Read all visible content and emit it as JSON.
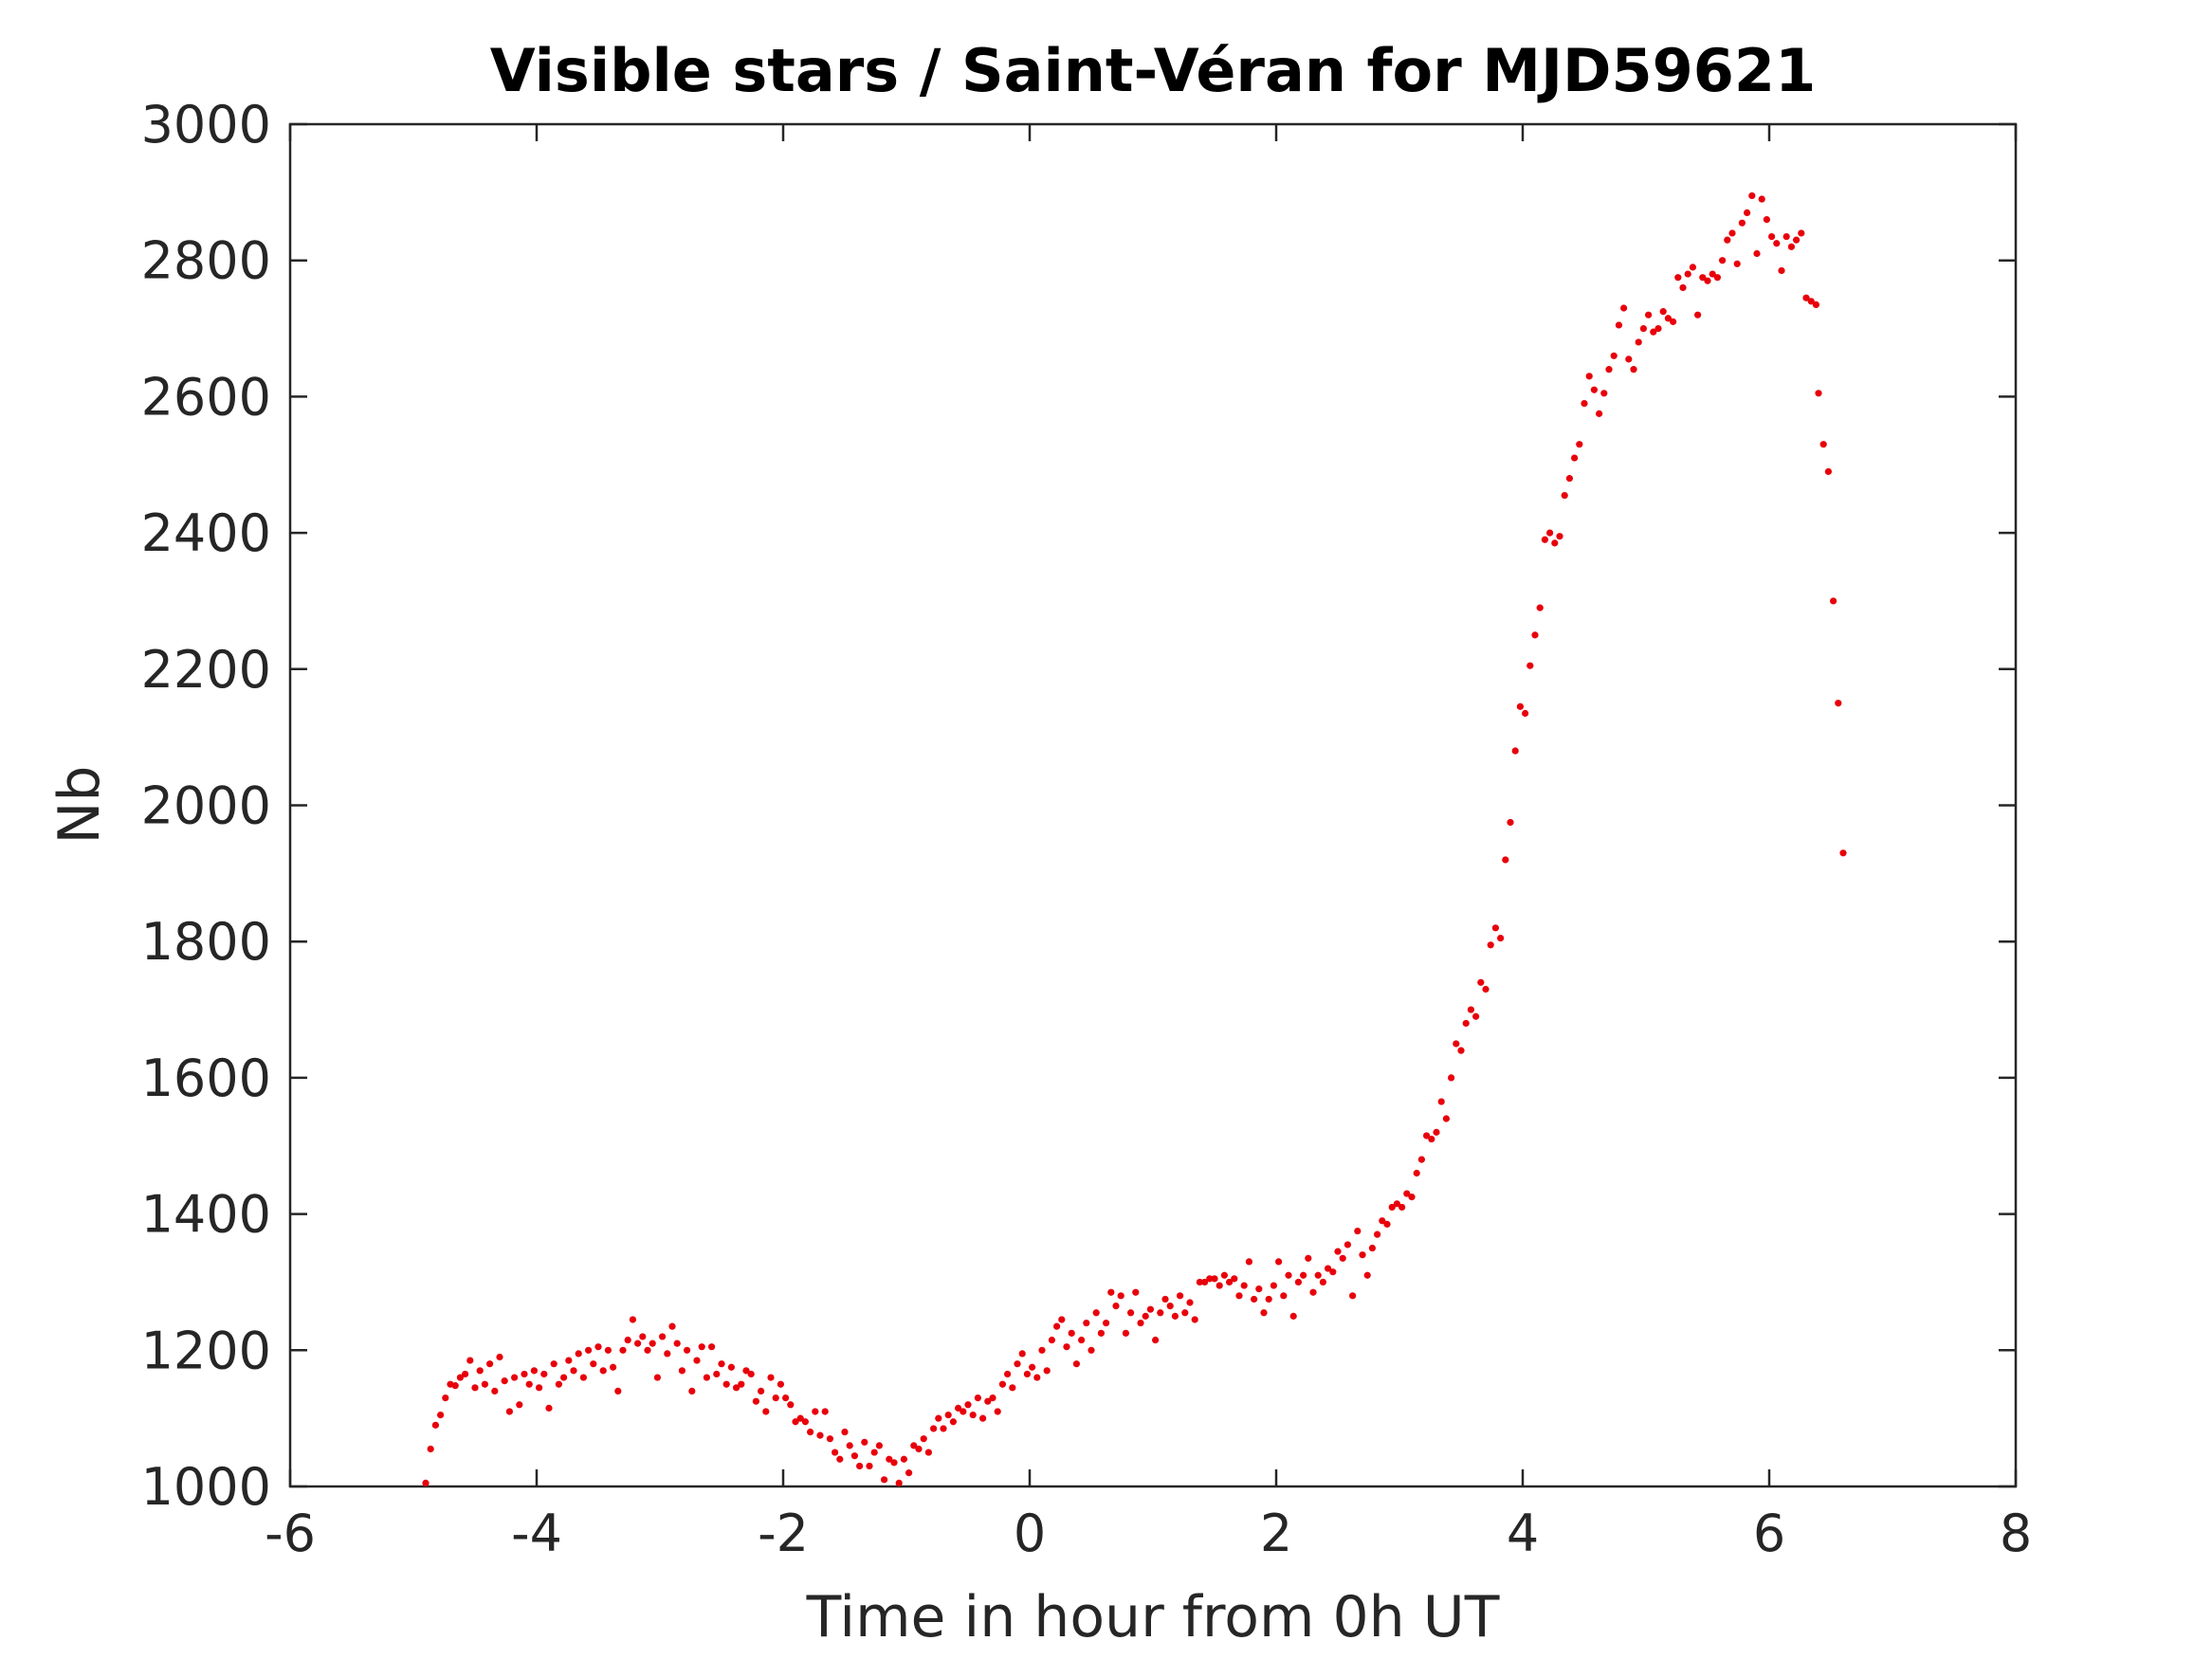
{
  "chart_data": {
    "type": "scatter",
    "title": "Visible stars / Saint-Véran for MJD59621",
    "xlabel": "Time in hour from 0h UT",
    "ylabel": "Nb",
    "xlim": [
      -6,
      8
    ],
    "ylim": [
      1000,
      3000
    ],
    "x_ticks": [
      -6,
      -4,
      -2,
      0,
      2,
      4,
      6,
      8
    ],
    "y_ticks": [
      1000,
      1200,
      1400,
      1600,
      1800,
      2000,
      2200,
      2400,
      2600,
      2800,
      3000
    ],
    "x_tick_labels": [
      "-6",
      "-4",
      "-2",
      "0",
      "2",
      "4",
      "6",
      "8"
    ],
    "y_tick_labels": [
      "1000",
      "1200",
      "1400",
      "1600",
      "1800",
      "2000",
      "2200",
      "2400",
      "2600",
      "2800",
      "3000"
    ],
    "grid": false,
    "box": true,
    "marker_color": "#e8000b",
    "series": [
      {
        "marker": "dot",
        "color": "#e8000b",
        "points": [
          [
            -4.9,
            1005
          ],
          [
            -4.86,
            1055
          ],
          [
            -4.82,
            1090
          ],
          [
            -4.78,
            1105
          ],
          [
            -4.74,
            1130
          ],
          [
            -4.7,
            1150
          ],
          [
            -4.66,
            1148
          ],
          [
            -4.62,
            1160
          ],
          [
            -4.58,
            1165
          ],
          [
            -4.54,
            1185
          ],
          [
            -4.5,
            1145
          ],
          [
            -4.46,
            1170
          ],
          [
            -4.42,
            1150
          ],
          [
            -4.38,
            1180
          ],
          [
            -4.34,
            1140
          ],
          [
            -4.3,
            1190
          ],
          [
            -4.26,
            1155
          ],
          [
            -4.22,
            1110
          ],
          [
            -4.18,
            1160
          ],
          [
            -4.14,
            1120
          ],
          [
            -4.1,
            1165
          ],
          [
            -4.06,
            1150
          ],
          [
            -4.02,
            1170
          ],
          [
            -3.98,
            1145
          ],
          [
            -3.94,
            1165
          ],
          [
            -3.9,
            1115
          ],
          [
            -3.86,
            1180
          ],
          [
            -3.82,
            1150
          ],
          [
            -3.78,
            1160
          ],
          [
            -3.74,
            1185
          ],
          [
            -3.7,
            1170
          ],
          [
            -3.66,
            1195
          ],
          [
            -3.62,
            1160
          ],
          [
            -3.58,
            1200
          ],
          [
            -3.54,
            1180
          ],
          [
            -3.5,
            1205
          ],
          [
            -3.46,
            1170
          ],
          [
            -3.42,
            1200
          ],
          [
            -3.38,
            1175
          ],
          [
            -3.34,
            1140
          ],
          [
            -3.3,
            1200
          ],
          [
            -3.26,
            1215
          ],
          [
            -3.22,
            1245
          ],
          [
            -3.18,
            1210
          ],
          [
            -3.14,
            1220
          ],
          [
            -3.1,
            1200
          ],
          [
            -3.06,
            1210
          ],
          [
            -3.02,
            1160
          ],
          [
            -2.98,
            1220
          ],
          [
            -2.94,
            1195
          ],
          [
            -2.9,
            1235
          ],
          [
            -2.86,
            1210
          ],
          [
            -2.82,
            1170
          ],
          [
            -2.78,
            1200
          ],
          [
            -2.74,
            1140
          ],
          [
            -2.7,
            1185
          ],
          [
            -2.66,
            1205
          ],
          [
            -2.62,
            1160
          ],
          [
            -2.58,
            1205
          ],
          [
            -2.54,
            1165
          ],
          [
            -2.5,
            1180
          ],
          [
            -2.46,
            1150
          ],
          [
            -2.42,
            1175
          ],
          [
            -2.38,
            1145
          ],
          [
            -2.34,
            1150
          ],
          [
            -2.3,
            1170
          ],
          [
            -2.26,
            1165
          ],
          [
            -2.22,
            1125
          ],
          [
            -2.18,
            1140
          ],
          [
            -2.14,
            1110
          ],
          [
            -2.1,
            1160
          ],
          [
            -2.06,
            1130
          ],
          [
            -2.02,
            1150
          ],
          [
            -1.98,
            1130
          ],
          [
            -1.94,
            1120
          ],
          [
            -1.9,
            1095
          ],
          [
            -1.86,
            1100
          ],
          [
            -1.82,
            1095
          ],
          [
            -1.78,
            1080
          ],
          [
            -1.74,
            1110
          ],
          [
            -1.7,
            1075
          ],
          [
            -1.66,
            1110
          ],
          [
            -1.62,
            1070
          ],
          [
            -1.58,
            1050
          ],
          [
            -1.54,
            1040
          ],
          [
            -1.5,
            1080
          ],
          [
            -1.46,
            1060
          ],
          [
            -1.42,
            1045
          ],
          [
            -1.38,
            1030
          ],
          [
            -1.34,
            1065
          ],
          [
            -1.3,
            1030
          ],
          [
            -1.26,
            1050
          ],
          [
            -1.22,
            1060
          ],
          [
            -1.18,
            1010
          ],
          [
            -1.14,
            1040
          ],
          [
            -1.1,
            1035
          ],
          [
            -1.06,
            1005
          ],
          [
            -1.02,
            1040
          ],
          [
            -0.98,
            1020
          ],
          [
            -0.94,
            1060
          ],
          [
            -0.9,
            1055
          ],
          [
            -0.86,
            1070
          ],
          [
            -0.82,
            1050
          ],
          [
            -0.78,
            1085
          ],
          [
            -0.74,
            1100
          ],
          [
            -0.7,
            1085
          ],
          [
            -0.66,
            1105
          ],
          [
            -0.62,
            1095
          ],
          [
            -0.58,
            1115
          ],
          [
            -0.54,
            1110
          ],
          [
            -0.5,
            1120
          ],
          [
            -0.46,
            1105
          ],
          [
            -0.42,
            1130
          ],
          [
            -0.38,
            1100
          ],
          [
            -0.34,
            1125
          ],
          [
            -0.3,
            1130
          ],
          [
            -0.26,
            1110
          ],
          [
            -0.22,
            1150
          ],
          [
            -0.18,
            1165
          ],
          [
            -0.14,
            1145
          ],
          [
            -0.1,
            1180
          ],
          [
            -0.06,
            1195
          ],
          [
            -0.02,
            1165
          ],
          [
            0.02,
            1175
          ],
          [
            0.06,
            1160
          ],
          [
            0.1,
            1200
          ],
          [
            0.14,
            1170
          ],
          [
            0.18,
            1215
          ],
          [
            0.22,
            1235
          ],
          [
            0.26,
            1245
          ],
          [
            0.3,
            1205
          ],
          [
            0.34,
            1225
          ],
          [
            0.38,
            1180
          ],
          [
            0.42,
            1215
          ],
          [
            0.46,
            1240
          ],
          [
            0.5,
            1200
          ],
          [
            0.54,
            1255
          ],
          [
            0.58,
            1225
          ],
          [
            0.62,
            1240
          ],
          [
            0.66,
            1285
          ],
          [
            0.7,
            1265
          ],
          [
            0.74,
            1280
          ],
          [
            0.78,
            1225
          ],
          [
            0.82,
            1255
          ],
          [
            0.86,
            1285
          ],
          [
            0.9,
            1240
          ],
          [
            0.94,
            1250
          ],
          [
            0.98,
            1260
          ],
          [
            1.02,
            1215
          ],
          [
            1.06,
            1255
          ],
          [
            1.1,
            1275
          ],
          [
            1.14,
            1265
          ],
          [
            1.18,
            1250
          ],
          [
            1.22,
            1280
          ],
          [
            1.26,
            1255
          ],
          [
            1.3,
            1270
          ],
          [
            1.34,
            1245
          ],
          [
            1.38,
            1300
          ],
          [
            1.42,
            1300
          ],
          [
            1.46,
            1305
          ],
          [
            1.5,
            1305
          ],
          [
            1.54,
            1295
          ],
          [
            1.58,
            1310
          ],
          [
            1.62,
            1300
          ],
          [
            1.66,
            1305
          ],
          [
            1.7,
            1280
          ],
          [
            1.74,
            1295
          ],
          [
            1.78,
            1330
          ],
          [
            1.82,
            1275
          ],
          [
            1.86,
            1290
          ],
          [
            1.9,
            1255
          ],
          [
            1.94,
            1275
          ],
          [
            1.98,
            1295
          ],
          [
            2.02,
            1330
          ],
          [
            2.06,
            1280
          ],
          [
            2.1,
            1310
          ],
          [
            2.14,
            1250
          ],
          [
            2.18,
            1300
          ],
          [
            2.22,
            1310
          ],
          [
            2.26,
            1335
          ],
          [
            2.3,
            1285
          ],
          [
            2.34,
            1310
          ],
          [
            2.38,
            1300
          ],
          [
            2.42,
            1320
          ],
          [
            2.46,
            1315
          ],
          [
            2.5,
            1345
          ],
          [
            2.54,
            1335
          ],
          [
            2.58,
            1355
          ],
          [
            2.62,
            1280
          ],
          [
            2.66,
            1375
          ],
          [
            2.7,
            1340
          ],
          [
            2.74,
            1310
          ],
          [
            2.78,
            1350
          ],
          [
            2.82,
            1370
          ],
          [
            2.86,
            1390
          ],
          [
            2.9,
            1385
          ],
          [
            2.94,
            1410
          ],
          [
            2.98,
            1415
          ],
          [
            3.02,
            1410
          ],
          [
            3.06,
            1430
          ],
          [
            3.1,
            1425
          ],
          [
            3.14,
            1460
          ],
          [
            3.18,
            1480
          ],
          [
            3.22,
            1515
          ],
          [
            3.26,
            1510
          ],
          [
            3.3,
            1520
          ],
          [
            3.34,
            1565
          ],
          [
            3.38,
            1540
          ],
          [
            3.42,
            1600
          ],
          [
            3.46,
            1650
          ],
          [
            3.5,
            1640
          ],
          [
            3.54,
            1680
          ],
          [
            3.58,
            1700
          ],
          [
            3.62,
            1690
          ],
          [
            3.66,
            1740
          ],
          [
            3.7,
            1730
          ],
          [
            3.74,
            1795
          ],
          [
            3.78,
            1820
          ],
          [
            3.82,
            1805
          ],
          [
            3.86,
            1920
          ],
          [
            3.9,
            1975
          ],
          [
            3.94,
            2080
          ],
          [
            3.98,
            2145
          ],
          [
            4.02,
            2135
          ],
          [
            4.06,
            2205
          ],
          [
            4.1,
            2250
          ],
          [
            4.14,
            2290
          ],
          [
            4.18,
            2390
          ],
          [
            4.22,
            2400
          ],
          [
            4.26,
            2385
          ],
          [
            4.3,
            2395
          ],
          [
            4.34,
            2455
          ],
          [
            4.38,
            2480
          ],
          [
            4.42,
            2510
          ],
          [
            4.46,
            2530
          ],
          [
            4.5,
            2590
          ],
          [
            4.54,
            2630
          ],
          [
            4.58,
            2610
          ],
          [
            4.62,
            2575
          ],
          [
            4.66,
            2605
          ],
          [
            4.7,
            2640
          ],
          [
            4.74,
            2660
          ],
          [
            4.78,
            2705
          ],
          [
            4.82,
            2730
          ],
          [
            4.86,
            2655
          ],
          [
            4.9,
            2640
          ],
          [
            4.94,
            2680
          ],
          [
            4.98,
            2700
          ],
          [
            5.02,
            2720
          ],
          [
            5.06,
            2695
          ],
          [
            5.1,
            2700
          ],
          [
            5.14,
            2725
          ],
          [
            5.18,
            2715
          ],
          [
            5.22,
            2710
          ],
          [
            5.26,
            2775
          ],
          [
            5.3,
            2760
          ],
          [
            5.34,
            2780
          ],
          [
            5.38,
            2790
          ],
          [
            5.42,
            2720
          ],
          [
            5.46,
            2775
          ],
          [
            5.5,
            2770
          ],
          [
            5.54,
            2780
          ],
          [
            5.58,
            2775
          ],
          [
            5.62,
            2800
          ],
          [
            5.66,
            2830
          ],
          [
            5.7,
            2840
          ],
          [
            5.74,
            2795
          ],
          [
            5.78,
            2855
          ],
          [
            5.82,
            2870
          ],
          [
            5.86,
            2895
          ],
          [
            5.9,
            2810
          ],
          [
            5.94,
            2890
          ],
          [
            5.98,
            2860
          ],
          [
            6.02,
            2835
          ],
          [
            6.06,
            2825
          ],
          [
            6.1,
            2785
          ],
          [
            6.14,
            2835
          ],
          [
            6.18,
            2820
          ],
          [
            6.22,
            2830
          ],
          [
            6.26,
            2840
          ],
          [
            6.3,
            2745
          ],
          [
            6.34,
            2740
          ],
          [
            6.38,
            2735
          ],
          [
            6.4,
            2605
          ],
          [
            6.44,
            2530
          ],
          [
            6.48,
            2490
          ],
          [
            6.52,
            2300
          ],
          [
            6.56,
            2150
          ],
          [
            6.6,
            1930
          ]
        ]
      }
    ]
  }
}
